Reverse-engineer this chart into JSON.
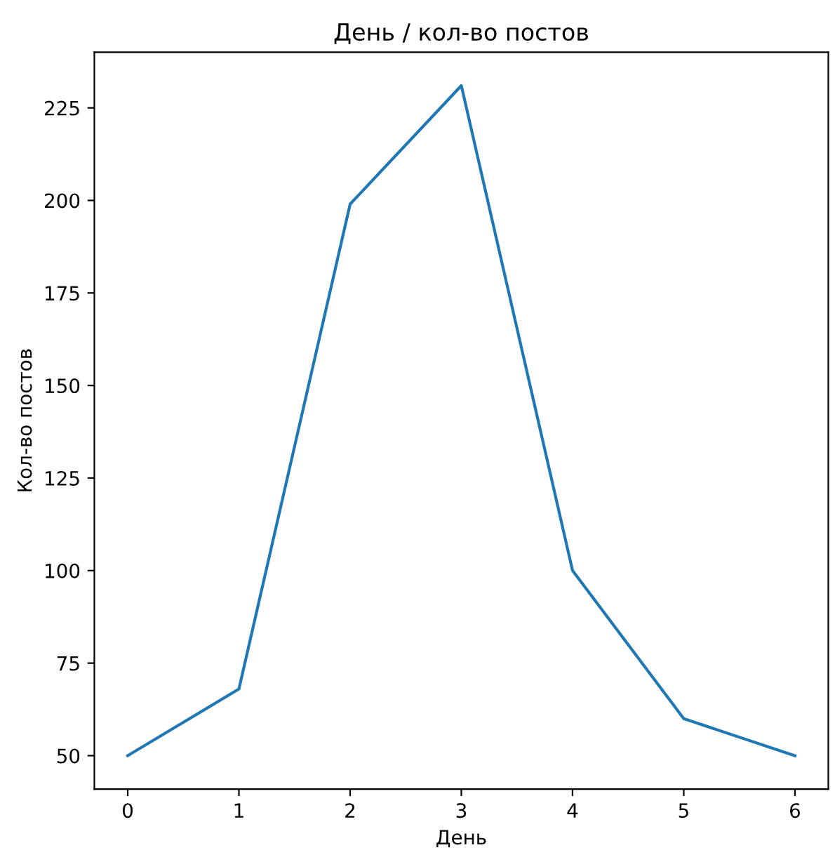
{
  "chart_data": {
    "type": "line",
    "title": "День / кол-во постов",
    "xlabel": "День",
    "ylabel": "Кол-во постов",
    "x": [
      0,
      1,
      2,
      3,
      4,
      5,
      6
    ],
    "series": [
      {
        "color": "#1f77b4",
        "values": [
          50,
          68,
          199,
          231,
          100,
          60,
          50
        ]
      }
    ],
    "xlim": [
      -0.3,
      6.3
    ],
    "xticks": [
      0,
      1,
      2,
      3,
      4,
      5,
      6
    ],
    "ylim": [
      40.95,
      240.05
    ],
    "yticks": [
      50,
      75,
      100,
      125,
      150,
      175,
      200,
      225
    ],
    "grid": false,
    "legend": false
  }
}
